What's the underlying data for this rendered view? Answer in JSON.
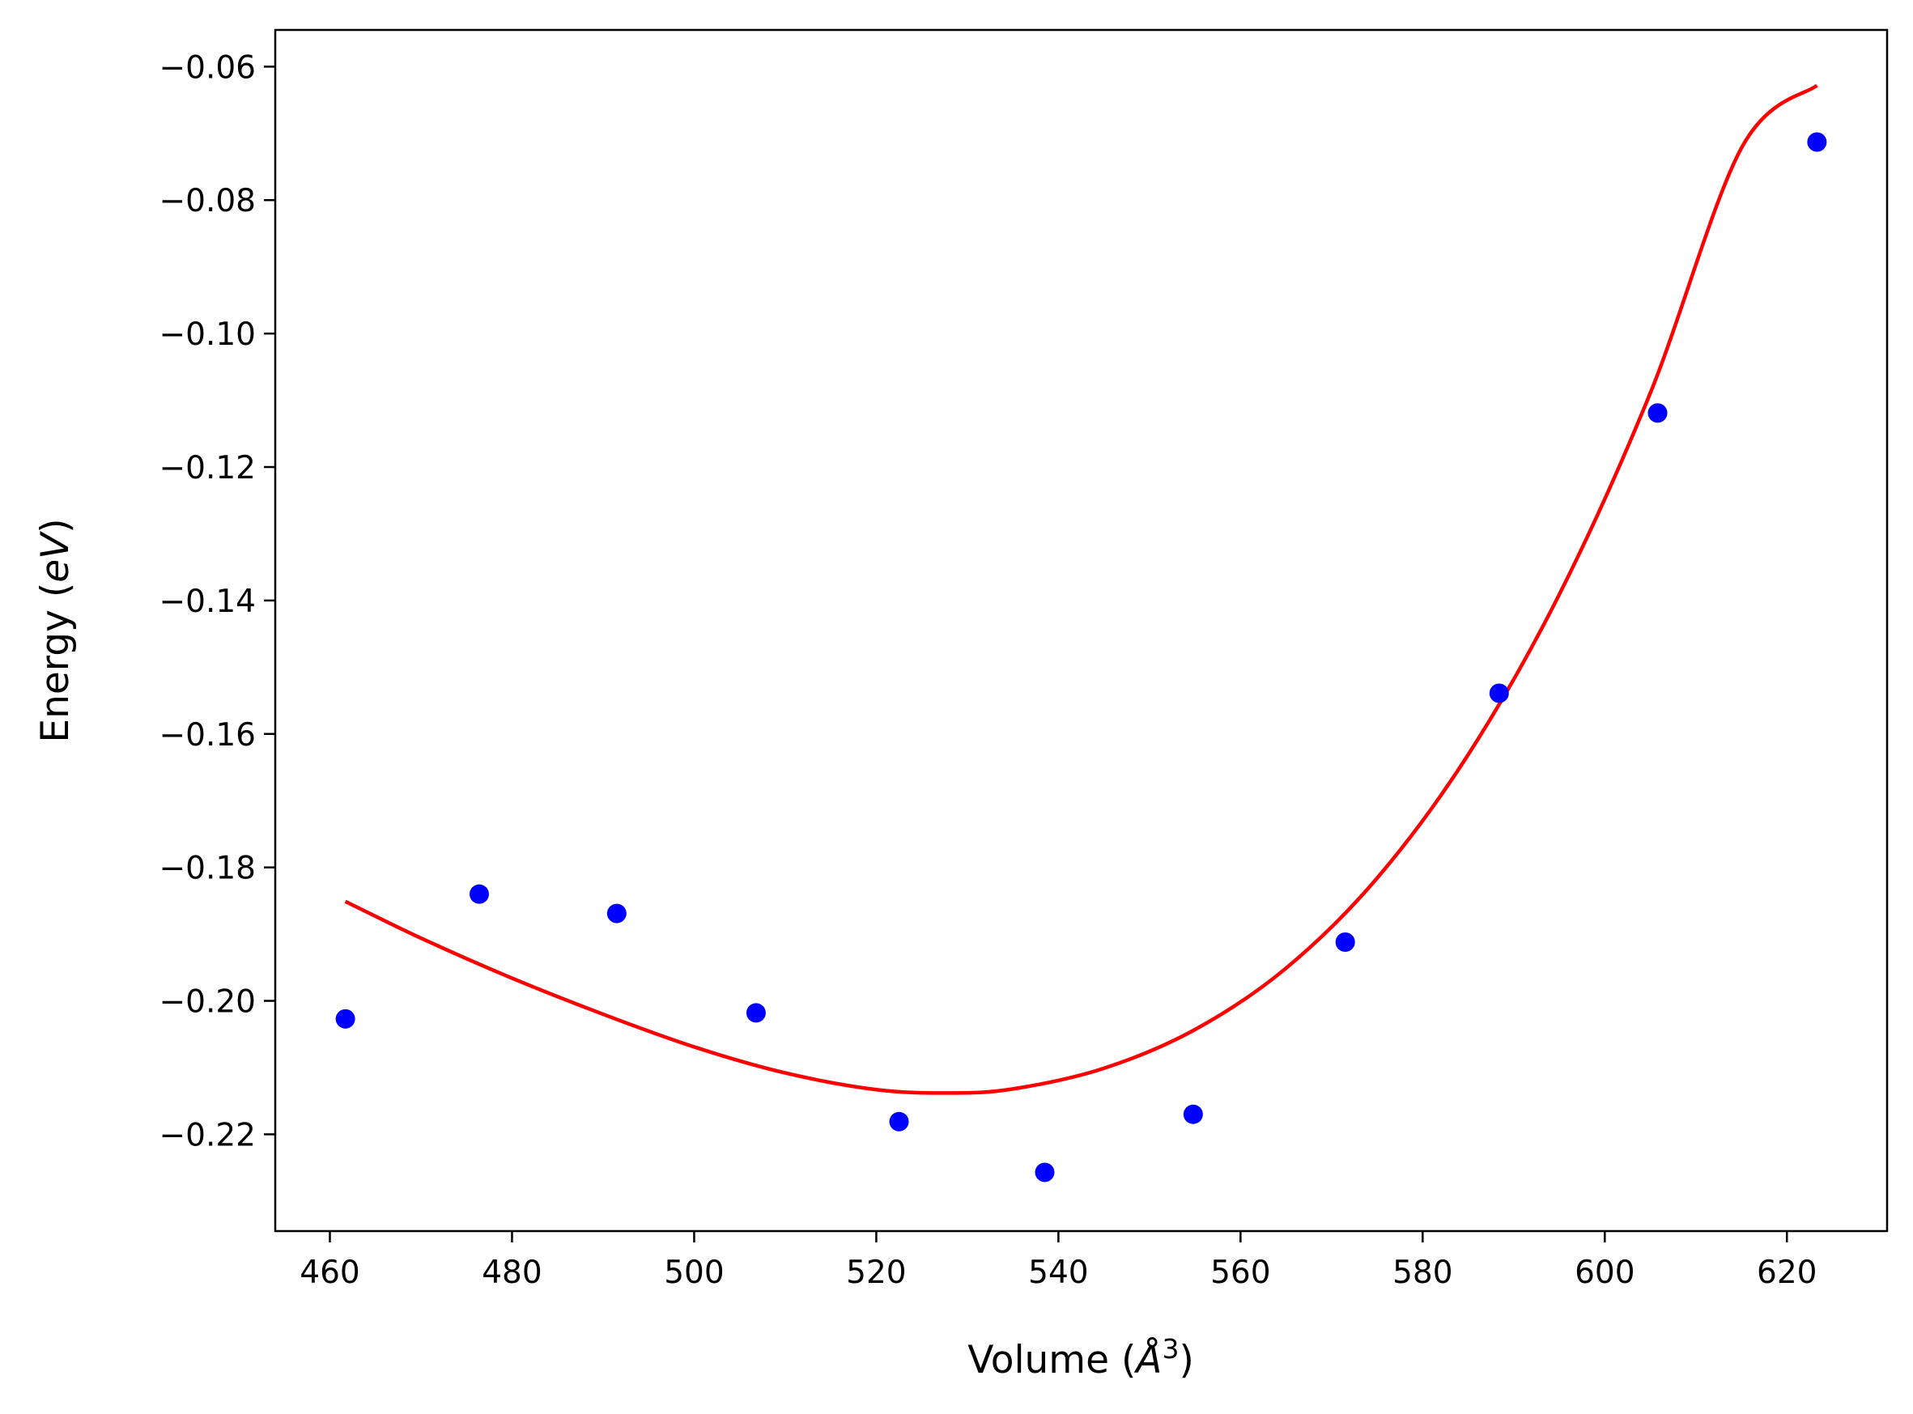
{
  "chart_data": {
    "type": "scatter",
    "xlabel": {
      "text": "Volume (",
      "symbol": "Å",
      "sup": "3",
      "close": ")"
    },
    "ylabel": {
      "text": "Energy (",
      "unit": "eV",
      "close": ")"
    },
    "xlim": [
      454,
      631
    ],
    "ylim": [
      -0.2345,
      -0.0545
    ],
    "xticks": [
      460,
      480,
      500,
      520,
      540,
      560,
      580,
      600,
      620
    ],
    "xtick_labels": [
      "460",
      "480",
      "500",
      "520",
      "540",
      "560",
      "580",
      "600",
      "620"
    ],
    "yticks": [
      -0.22,
      -0.2,
      -0.18,
      -0.16,
      -0.14,
      -0.12,
      -0.1,
      -0.08,
      -0.06
    ],
    "ytick_labels": [
      "−0.22",
      "−0.20",
      "−0.18",
      "−0.16",
      "−0.14",
      "−0.12",
      "−0.10",
      "−0.08",
      "−0.06"
    ],
    "grid": false,
    "legend": "none",
    "series": [
      {
        "kind": "points",
        "color": "#0000ff",
        "x": [
          461.7,
          476.4,
          491.5,
          506.8,
          522.5,
          538.5,
          554.8,
          571.5,
          588.4,
          605.8,
          623.3
        ],
        "y": [
          -0.2027,
          -0.184,
          -0.1869,
          -0.2018,
          -0.2181,
          -0.2257,
          -0.217,
          -0.1912,
          -0.1539,
          -0.1119,
          -0.0713
        ]
      },
      {
        "kind": "line",
        "color": "#ff0000",
        "x": [
          461.7,
          470,
          480,
          490,
          500,
          510,
          520,
          528,
          535,
          545,
          555,
          565,
          575,
          585,
          595,
          605,
          615,
          623.3
        ],
        "y": [
          -0.1851,
          -0.1906,
          -0.1966,
          -0.202,
          -0.2069,
          -0.2108,
          -0.2133,
          -0.2138,
          -0.2132,
          -0.2101,
          -0.2043,
          -0.1951,
          -0.1816,
          -0.1631,
          -0.1391,
          -0.1089,
          -0.0722,
          -0.0628
        ]
      }
    ]
  }
}
